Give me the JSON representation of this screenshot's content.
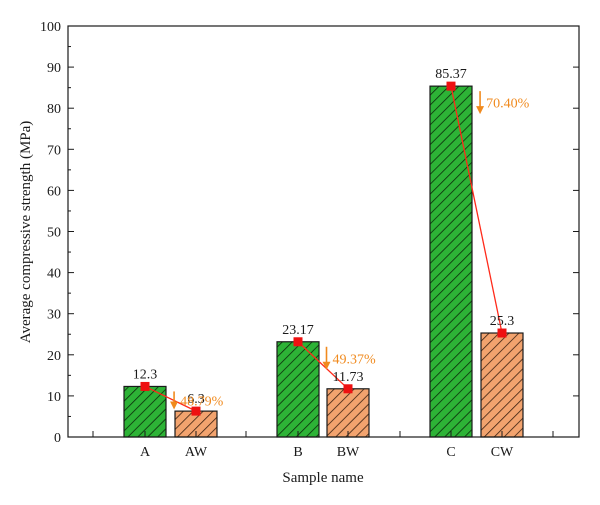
{
  "chart_data": {
    "type": "bar",
    "xlabel": "Sample name",
    "ylabel": "Average compressive strength (MPa)",
    "ylim": [
      0,
      100
    ],
    "yticks": [
      0,
      10,
      20,
      30,
      40,
      50,
      60,
      70,
      80,
      90,
      100
    ],
    "categories": [
      "A",
      "AW",
      "B",
      "BW",
      "C",
      "CW"
    ],
    "values": [
      12.3,
      6.3,
      23.17,
      11.73,
      85.37,
      25.3
    ],
    "value_labels": [
      "12.3",
      "6.3",
      "23.17",
      "11.73",
      "85.37",
      "25.3"
    ],
    "bar_colors": [
      "#2db336",
      "#f2a36e",
      "#2db336",
      "#f2a36e",
      "#2db336",
      "#f2a36e"
    ],
    "bar_hatch": "diagonal",
    "reductions": [
      {
        "from": "A",
        "to": "AW",
        "label": "48.79%"
      },
      {
        "from": "B",
        "to": "BW",
        "label": "49.37%"
      },
      {
        "from": "C",
        "to": "CW",
        "label": "70.40%"
      }
    ],
    "colors": {
      "line": "#ff2a1a",
      "marker": "#ee1111",
      "annotation": "#f08a1e"
    },
    "grid": false,
    "legend": "none"
  }
}
